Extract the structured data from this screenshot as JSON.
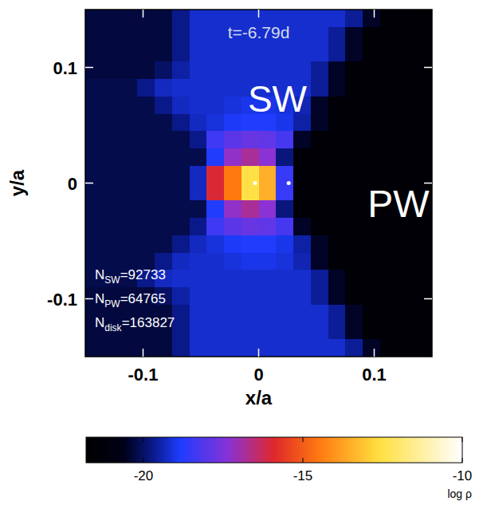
{
  "chart_data": {
    "type": "heatmap",
    "title": "t=-6.79d",
    "x_label": "x/a",
    "y_label": "y/a",
    "xlim": [
      -0.15,
      0.15
    ],
    "ylim": [
      -0.15,
      0.15
    ],
    "xticks": [
      -0.1,
      0,
      0.1
    ],
    "yticks": [
      -0.1,
      0,
      0.1
    ],
    "annotations": [
      "SW",
      "PW"
    ],
    "count_symbol": "N",
    "count_separator": "=",
    "particle_counts": [
      {
        "name": "SW",
        "value": 92733
      },
      {
        "name": "PW",
        "value": 64765
      },
      {
        "name": "disk",
        "value": 163827
      }
    ],
    "stars": {
      "x": [
        -0.003,
        0.026
      ],
      "y": [
        0,
        0
      ]
    },
    "colorbar": {
      "label": "log ρ",
      "range": [
        -21.8,
        -10
      ],
      "ticks": [
        -20,
        -15,
        -10
      ]
    },
    "cell_x": [
      -0.1425,
      -0.1275,
      -0.1125,
      -0.0975,
      -0.0825,
      -0.0675,
      -0.0525,
      -0.0375,
      -0.0225,
      -0.0075,
      0.0075,
      0.0225,
      0.0375,
      0.0525,
      0.0675,
      0.0825,
      0.0975,
      0.1125,
      0.1275,
      0.1425
    ],
    "cell_y": [
      0.1425,
      0.1275,
      0.1125,
      0.0975,
      0.0825,
      0.0675,
      0.0525,
      0.0375,
      0.0225,
      0.0075,
      -0.0075,
      -0.0225,
      -0.0375,
      -0.0525,
      -0.0675,
      -0.0825,
      -0.0975,
      -0.1125,
      -0.1275,
      -0.1425
    ],
    "cells": [
      [
        -20.3,
        -20.3,
        -20.3,
        -20.3,
        -20.3,
        -19.7,
        -19.2,
        -19.2,
        -19.2,
        -19.2,
        -19.2,
        -19.2,
        -19.2,
        -19.2,
        -19.2,
        -19.6,
        -20.5,
        -21.5,
        -21.5,
        -21.5
      ],
      [
        -20.3,
        -20.3,
        -20.3,
        -20.3,
        -20.3,
        -19.7,
        -19.2,
        -19.2,
        -19.2,
        -19.2,
        -19.2,
        -19.2,
        -19.2,
        -19.2,
        -19.6,
        -20.5,
        -21.5,
        -21.5,
        -21.5,
        -21.5
      ],
      [
        -20.3,
        -20.3,
        -20.3,
        -20.3,
        -20.3,
        -19.7,
        -19.2,
        -19.2,
        -19.2,
        -19.2,
        -19.2,
        -19.2,
        -19.2,
        -19.2,
        -19.6,
        -20.5,
        -21.5,
        -21.5,
        -21.5,
        -21.5
      ],
      [
        -20.3,
        -20.3,
        -20.3,
        -20.3,
        -20.0,
        -19.5,
        -19.2,
        -19.2,
        -19.2,
        -19.2,
        -19.2,
        -19.2,
        -19.2,
        -19.6,
        -20.5,
        -21.5,
        -21.5,
        -21.5,
        -21.5,
        -21.5
      ],
      [
        -20.2,
        -20.2,
        -20.2,
        -19.7,
        -19.3,
        -19.2,
        -19.2,
        -19.2,
        -19.2,
        -19.2,
        -19.2,
        -19.2,
        -19.2,
        -19.6,
        -20.5,
        -21.5,
        -21.5,
        -21.5,
        -21.5,
        -21.5
      ],
      [
        -20.2,
        -20.2,
        -20.2,
        -20.2,
        -19.7,
        -19.3,
        -19.2,
        -19.2,
        -19.1,
        -19.0,
        -19.0,
        -19.1,
        -19.4,
        -20.5,
        -21.5,
        -21.5,
        -21.5,
        -21.5,
        -21.5,
        -21.5
      ],
      [
        -20.2,
        -20.2,
        -20.2,
        -20.2,
        -20.2,
        -19.7,
        -19.3,
        -19.1,
        -18.9,
        -18.8,
        -18.8,
        -19.0,
        -19.5,
        -20.5,
        -21.5,
        -21.5,
        -21.5,
        -21.5,
        -21.5,
        -21.5
      ],
      [
        -20.2,
        -20.2,
        -20.2,
        -20.2,
        -20.2,
        -20.2,
        -19.7,
        -18.4,
        -18.0,
        -17.8,
        -17.9,
        -18.3,
        -20.5,
        -21.5,
        -21.5,
        -21.5,
        -21.5,
        -21.5,
        -21.5,
        -21.5
      ],
      [
        -20.2,
        -20.2,
        -20.2,
        -20.2,
        -20.2,
        -20.2,
        -20.2,
        -18.8,
        -17.2,
        -16.8,
        -17.3,
        -19.8,
        -21.5,
        -21.5,
        -21.5,
        -21.5,
        -21.5,
        -21.5,
        -21.5,
        -21.5
      ],
      [
        -20.2,
        -20.2,
        -20.2,
        -20.2,
        -20.2,
        -20.2,
        -19.3,
        -16.0,
        -14.5,
        -12.5,
        -13.5,
        -18.5,
        -21.5,
        -21.5,
        -21.5,
        -21.5,
        -21.5,
        -21.5,
        -21.5,
        -21.5
      ],
      [
        -20.2,
        -20.2,
        -20.2,
        -20.2,
        -20.2,
        -20.2,
        -19.3,
        -16.0,
        -14.5,
        -12.5,
        -13.5,
        -18.5,
        -21.5,
        -21.5,
        -21.5,
        -21.5,
        -21.5,
        -21.5,
        -21.5,
        -21.5
      ],
      [
        -20.2,
        -20.2,
        -20.2,
        -20.2,
        -20.2,
        -20.2,
        -20.2,
        -18.8,
        -17.2,
        -16.8,
        -17.3,
        -19.8,
        -21.5,
        -21.5,
        -21.5,
        -21.5,
        -21.5,
        -21.5,
        -21.5,
        -21.5
      ],
      [
        -20.2,
        -20.2,
        -20.2,
        -20.2,
        -20.2,
        -20.2,
        -19.7,
        -18.4,
        -18.0,
        -17.8,
        -17.9,
        -18.3,
        -20.5,
        -21.5,
        -21.5,
        -21.5,
        -21.5,
        -21.5,
        -21.5,
        -21.5
      ],
      [
        -20.2,
        -20.2,
        -20.2,
        -20.2,
        -20.2,
        -19.7,
        -19.3,
        -19.1,
        -18.9,
        -18.8,
        -18.8,
        -19.0,
        -19.5,
        -20.5,
        -21.5,
        -21.5,
        -21.5,
        -21.5,
        -21.5,
        -21.5
      ],
      [
        -20.2,
        -20.2,
        -20.2,
        -20.2,
        -19.7,
        -19.3,
        -19.2,
        -19.2,
        -19.1,
        -19.0,
        -19.0,
        -19.1,
        -19.4,
        -20.5,
        -21.5,
        -21.5,
        -21.5,
        -21.5,
        -21.5,
        -21.5
      ],
      [
        -20.2,
        -20.2,
        -20.2,
        -19.7,
        -19.3,
        -19.2,
        -19.2,
        -19.2,
        -19.2,
        -19.2,
        -19.2,
        -19.2,
        -19.2,
        -19.6,
        -20.5,
        -21.5,
        -21.5,
        -21.5,
        -21.5,
        -21.5
      ],
      [
        -20.3,
        -20.3,
        -20.3,
        -20.3,
        -20.0,
        -19.5,
        -19.2,
        -19.2,
        -19.2,
        -19.2,
        -19.2,
        -19.2,
        -19.2,
        -19.6,
        -20.5,
        -21.5,
        -21.5,
        -21.5,
        -21.5,
        -21.5
      ],
      [
        -20.3,
        -20.3,
        -20.3,
        -20.3,
        -20.3,
        -19.7,
        -19.2,
        -19.2,
        -19.2,
        -19.2,
        -19.2,
        -19.2,
        -19.2,
        -19.2,
        -19.6,
        -20.5,
        -21.5,
        -21.5,
        -21.5,
        -21.5
      ],
      [
        -20.3,
        -20.3,
        -20.3,
        -20.3,
        -20.3,
        -19.7,
        -19.2,
        -19.2,
        -19.2,
        -19.2,
        -19.2,
        -19.2,
        -19.2,
        -19.2,
        -19.6,
        -20.5,
        -21.5,
        -21.5,
        -21.5,
        -21.5
      ],
      [
        -20.3,
        -20.3,
        -20.3,
        -20.3,
        -20.3,
        -19.7,
        -19.2,
        -19.2,
        -19.2,
        -19.2,
        -19.2,
        -19.2,
        -19.2,
        -19.2,
        -19.2,
        -19.6,
        -20.5,
        -21.5,
        -21.5,
        -21.5
      ]
    ]
  }
}
